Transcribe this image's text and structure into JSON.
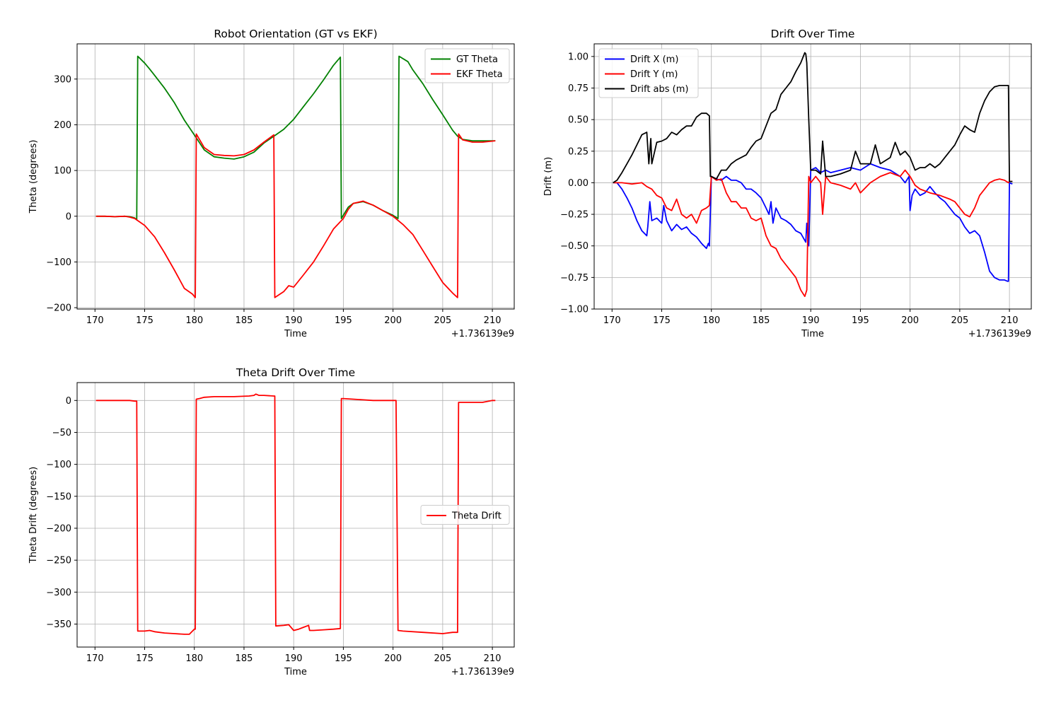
{
  "chart_data": [
    {
      "type": "line",
      "title": "Robot Orientation (GT vs EKF)",
      "xlabel": "Time",
      "ylabel": "Theta (degrees)",
      "x_offset_label": "+1.736139e9",
      "xlim": [
        168.2,
        212.2
      ],
      "ylim": [
        -203,
        377
      ],
      "xticks": [
        170,
        175,
        180,
        185,
        190,
        195,
        200,
        205,
        210
      ],
      "yticks": [
        -200,
        -100,
        0,
        100,
        200,
        300
      ],
      "ytick_labels": [
        "−200",
        "−100",
        "0",
        "100",
        "200",
        "300"
      ],
      "grid": true,
      "legend": "upper right",
      "series": [
        {
          "name": "GT Theta",
          "color": "#008000",
          "x": [
            170.1,
            171.0,
            172.0,
            173.0,
            173.5,
            174.0,
            174.2,
            174.3,
            175.0,
            175.5,
            176.0,
            177.0,
            178.0,
            179.0,
            180.0,
            180.3,
            181.0,
            182.0,
            183.0,
            184.0,
            185.0,
            186.0,
            187.0,
            188.0,
            188.2,
            189.0,
            190.0,
            191.0,
            192.0,
            193.0,
            194.0,
            194.7,
            194.8,
            195.5,
            196.0,
            197.0,
            198.0,
            199.0,
            200.0,
            200.5,
            200.6,
            201.5,
            202.0,
            203.0,
            204.0,
            205.0,
            206.0,
            206.5,
            207.0,
            208.0,
            210.3
          ],
          "y": [
            0,
            0,
            -1,
            0,
            -1,
            -4,
            -8,
            350,
            335,
            322,
            308,
            280,
            248,
            210,
            178,
            168,
            145,
            130,
            127,
            125,
            130,
            140,
            160,
            175,
            178,
            190,
            212,
            240,
            268,
            298,
            330,
            348,
            -5,
            20,
            28,
            32,
            24,
            12,
            2,
            -5,
            350,
            338,
            320,
            290,
            255,
            222,
            188,
            175,
            168,
            165,
            165
          ]
        },
        {
          "name": "EKF Theta",
          "color": "#ff0000",
          "x": [
            170.1,
            171.0,
            172.0,
            173.0,
            173.5,
            174.0,
            175.0,
            176.0,
            177.0,
            178.0,
            179.0,
            179.8,
            180.1,
            180.2,
            181.0,
            182.0,
            183.0,
            184.0,
            185.0,
            186.0,
            187.0,
            188.0,
            188.1,
            189.0,
            189.5,
            190.0,
            191.0,
            192.0,
            193.0,
            194.0,
            195.0,
            195.5,
            196.0,
            197.0,
            198.0,
            199.0,
            200.0,
            201.0,
            202.0,
            203.0,
            204.0,
            205.0,
            206.0,
            206.5,
            206.6,
            207.0,
            208.0,
            209.0,
            210.3
          ],
          "y": [
            0,
            0,
            -1,
            0,
            -2,
            -5,
            -20,
            -45,
            -80,
            -118,
            -158,
            -170,
            -178,
            180,
            150,
            135,
            133,
            132,
            135,
            145,
            162,
            178,
            -178,
            -165,
            -152,
            -155,
            -128,
            -100,
            -65,
            -28,
            -5,
            15,
            28,
            33,
            24,
            12,
            0,
            -18,
            -40,
            -75,
            -110,
            -145,
            -168,
            -178,
            180,
            167,
            162,
            162,
            165
          ]
        }
      ]
    },
    {
      "type": "line",
      "title": "Drift Over Time",
      "xlabel": "Time",
      "ylabel": "Drift (m)",
      "x_offset_label": "+1.736139e9",
      "xlim": [
        168.2,
        212.2
      ],
      "ylim": [
        -1.0,
        1.1
      ],
      "xticks": [
        170,
        175,
        180,
        185,
        190,
        195,
        200,
        205,
        210
      ],
      "yticks": [
        -1.0,
        -0.75,
        -0.5,
        -0.25,
        0.0,
        0.25,
        0.5,
        0.75,
        1.0
      ],
      "ytick_labels": [
        "−1.00",
        "−0.75",
        "−0.50",
        "−0.25",
        "0.00",
        "0.25",
        "0.50",
        "0.75",
        "1.00"
      ],
      "grid": true,
      "legend": "upper left",
      "series": [
        {
          "name": "Drift X (m)",
          "color": "#0000ff",
          "x": [
            170.1,
            170.5,
            171.0,
            171.5,
            172.0,
            172.5,
            173.0,
            173.5,
            173.6,
            173.8,
            174.0,
            174.5,
            175.0,
            175.2,
            175.5,
            176.0,
            176.5,
            177.0,
            177.5,
            178.0,
            178.5,
            179.0,
            179.5,
            179.7,
            179.8,
            180.0,
            180.5,
            181.0,
            181.5,
            182.0,
            182.5,
            183.0,
            183.5,
            184.0,
            184.5,
            185.0,
            185.5,
            185.8,
            186.0,
            186.2,
            186.5,
            187.0,
            187.5,
            188.0,
            188.5,
            189.0,
            189.5,
            189.6,
            189.8,
            190.0,
            190.5,
            191.0,
            191.5,
            192.0,
            193.0,
            194.0,
            195.0,
            196.0,
            197.0,
            198.0,
            199.0,
            199.5,
            199.9,
            200.0,
            200.2,
            200.5,
            201.0,
            201.5,
            202.0,
            202.5,
            203.0,
            203.5,
            204.0,
            204.5,
            205.0,
            205.5,
            206.0,
            206.5,
            207.0,
            207.5,
            208.0,
            208.5,
            209.0,
            209.5,
            209.8,
            209.9,
            210.0,
            210.3
          ],
          "y": [
            0.0,
            0.0,
            -0.05,
            -0.12,
            -0.2,
            -0.3,
            -0.38,
            -0.42,
            -0.35,
            -0.15,
            -0.3,
            -0.28,
            -0.32,
            -0.18,
            -0.3,
            -0.38,
            -0.33,
            -0.37,
            -0.35,
            -0.4,
            -0.43,
            -0.48,
            -0.52,
            -0.48,
            -0.5,
            0.05,
            0.03,
            0.02,
            0.05,
            0.02,
            0.02,
            0.0,
            -0.05,
            -0.05,
            -0.08,
            -0.12,
            -0.2,
            -0.25,
            -0.15,
            -0.32,
            -0.2,
            -0.28,
            -0.3,
            -0.33,
            -0.38,
            -0.4,
            -0.47,
            -0.32,
            -0.5,
            0.1,
            0.12,
            0.08,
            0.1,
            0.08,
            0.1,
            0.12,
            0.1,
            0.15,
            0.12,
            0.1,
            0.05,
            0.0,
            0.05,
            -0.22,
            -0.1,
            -0.05,
            -0.1,
            -0.08,
            -0.03,
            -0.08,
            -0.12,
            -0.15,
            -0.2,
            -0.25,
            -0.28,
            -0.35,
            -0.4,
            -0.38,
            -0.42,
            -0.55,
            -0.7,
            -0.75,
            -0.77,
            -0.77,
            -0.78,
            -0.78,
            0.0,
            -0.01
          ]
        },
        {
          "name": "Drift Y (m)",
          "color": "#ff0000",
          "x": [
            170.1,
            171.0,
            172.0,
            173.0,
            173.5,
            174.0,
            174.5,
            175.0,
            175.5,
            176.0,
            176.5,
            177.0,
            177.5,
            178.0,
            178.5,
            179.0,
            179.5,
            179.8,
            180.0,
            180.5,
            181.0,
            181.5,
            182.0,
            182.5,
            183.0,
            183.5,
            184.0,
            184.5,
            185.0,
            185.5,
            186.0,
            186.5,
            187.0,
            187.5,
            188.0,
            188.5,
            189.0,
            189.4,
            189.6,
            189.8,
            190.0,
            190.5,
            191.0,
            191.2,
            191.5,
            192.0,
            193.0,
            194.0,
            194.5,
            195.0,
            196.0,
            197.0,
            198.0,
            199.0,
            199.5,
            200.0,
            200.5,
            201.0,
            202.0,
            203.0,
            204.0,
            204.5,
            205.0,
            205.5,
            206.0,
            206.5,
            207.0,
            207.5,
            208.0,
            208.5,
            209.0,
            209.5,
            209.9,
            210.0,
            210.3
          ],
          "y": [
            0.0,
            0.0,
            -0.01,
            0.0,
            -0.03,
            -0.05,
            -0.1,
            -0.12,
            -0.2,
            -0.22,
            -0.13,
            -0.25,
            -0.28,
            -0.25,
            -0.32,
            -0.22,
            -0.2,
            -0.18,
            0.05,
            0.02,
            0.03,
            -0.08,
            -0.15,
            -0.15,
            -0.2,
            -0.2,
            -0.28,
            -0.3,
            -0.28,
            -0.42,
            -0.5,
            -0.52,
            -0.6,
            -0.65,
            -0.7,
            -0.75,
            -0.85,
            -0.9,
            -0.85,
            0.05,
            0.0,
            0.05,
            0.0,
            -0.25,
            0.05,
            0.0,
            -0.02,
            -0.05,
            0.0,
            -0.08,
            0.0,
            0.05,
            0.08,
            0.05,
            0.1,
            0.05,
            -0.02,
            -0.05,
            -0.08,
            -0.1,
            -0.13,
            -0.15,
            -0.2,
            -0.25,
            -0.27,
            -0.2,
            -0.1,
            -0.05,
            0.0,
            0.02,
            0.03,
            0.02,
            0.0,
            0.01,
            0.01
          ]
        },
        {
          "name": "Drift abs (m)",
          "color": "#000000",
          "x": [
            170.1,
            170.5,
            171.0,
            171.5,
            172.0,
            172.5,
            173.0,
            173.5,
            173.7,
            173.9,
            174.0,
            174.5,
            175.0,
            175.5,
            176.0,
            176.5,
            177.0,
            177.5,
            178.0,
            178.5,
            179.0,
            179.5,
            179.8,
            179.9,
            180.0,
            180.5,
            181.0,
            181.5,
            182.0,
            182.5,
            183.0,
            183.5,
            184.0,
            184.5,
            185.0,
            185.5,
            186.0,
            186.5,
            187.0,
            187.5,
            188.0,
            188.5,
            189.0,
            189.4,
            189.5,
            189.6,
            189.8,
            190.0,
            190.5,
            191.0,
            191.2,
            191.5,
            192.0,
            193.0,
            194.0,
            194.5,
            195.0,
            196.0,
            196.5,
            197.0,
            198.0,
            198.5,
            199.0,
            199.5,
            200.0,
            200.5,
            201.0,
            201.5,
            202.0,
            202.5,
            203.0,
            203.5,
            204.0,
            204.5,
            205.0,
            205.5,
            206.0,
            206.5,
            207.0,
            207.5,
            208.0,
            208.5,
            209.0,
            209.5,
            209.8,
            209.9,
            210.0,
            210.3
          ],
          "y": [
            0.0,
            0.02,
            0.08,
            0.15,
            0.22,
            0.3,
            0.38,
            0.4,
            0.15,
            0.35,
            0.15,
            0.32,
            0.33,
            0.35,
            0.4,
            0.38,
            0.42,
            0.45,
            0.45,
            0.52,
            0.55,
            0.55,
            0.53,
            0.05,
            0.05,
            0.03,
            0.1,
            0.1,
            0.15,
            0.18,
            0.2,
            0.22,
            0.28,
            0.33,
            0.35,
            0.45,
            0.55,
            0.58,
            0.7,
            0.75,
            0.8,
            0.88,
            0.95,
            1.03,
            1.02,
            0.95,
            0.5,
            0.1,
            0.1,
            0.07,
            0.33,
            0.05,
            0.05,
            0.07,
            0.1,
            0.25,
            0.15,
            0.15,
            0.3,
            0.15,
            0.2,
            0.32,
            0.22,
            0.25,
            0.2,
            0.1,
            0.12,
            0.12,
            0.15,
            0.12,
            0.15,
            0.2,
            0.25,
            0.3,
            0.38,
            0.45,
            0.42,
            0.4,
            0.55,
            0.65,
            0.72,
            0.76,
            0.77,
            0.77,
            0.77,
            0.77,
            0.01,
            0.01
          ]
        }
      ]
    },
    {
      "type": "line",
      "title": "Theta Drift Over Time",
      "xlabel": "Time",
      "ylabel": "Theta Drift (degrees)",
      "x_offset_label": "+1.736139e9",
      "xlim": [
        168.2,
        212.2
      ],
      "ylim": [
        -386,
        28
      ],
      "xticks": [
        170,
        175,
        180,
        185,
        190,
        195,
        200,
        205,
        210
      ],
      "yticks": [
        0,
        -50,
        -100,
        -150,
        -200,
        -250,
        -300,
        -350
      ],
      "ytick_labels": [
        "0",
        "−50",
        "−100",
        "−150",
        "−200",
        "−250",
        "−300",
        "−350"
      ],
      "grid": true,
      "legend": "center right",
      "series": [
        {
          "name": "Theta Drift",
          "color": "#ff0000",
          "x": [
            170.1,
            172.0,
            173.5,
            174.0,
            174.2,
            174.3,
            175.0,
            175.5,
            176.0,
            177.0,
            178.0,
            179.0,
            179.5,
            180.0,
            180.1,
            180.2,
            180.5,
            181.0,
            182.0,
            184.0,
            185.5,
            186.0,
            186.2,
            186.5,
            187.0,
            188.0,
            188.1,
            188.2,
            189.0,
            189.5,
            190.0,
            190.5,
            191.0,
            191.5,
            191.6,
            192.0,
            193.0,
            194.0,
            194.7,
            194.8,
            195.0,
            196.0,
            197.0,
            198.0,
            199.0,
            200.0,
            200.3,
            200.5,
            201.0,
            203.0,
            205.0,
            206.0,
            206.4,
            206.5,
            206.6,
            207.0,
            209.0,
            210.0,
            210.3
          ],
          "y": [
            0,
            0,
            0,
            -1,
            -1,
            -361,
            -361,
            -360,
            -362,
            -364,
            -365,
            -366,
            -366,
            -358,
            -358,
            2,
            3,
            5,
            6,
            6,
            7,
            8,
            10,
            8,
            8,
            7,
            7,
            -353,
            -352,
            -351,
            -360,
            -358,
            -355,
            -352,
            -360,
            -360,
            -359,
            -358,
            -357,
            3,
            3,
            2,
            1,
            0,
            0,
            0,
            0,
            -360,
            -361,
            -363,
            -365,
            -363,
            -363,
            -363,
            -3,
            -3,
            -3,
            0,
            0
          ]
        }
      ]
    }
  ]
}
